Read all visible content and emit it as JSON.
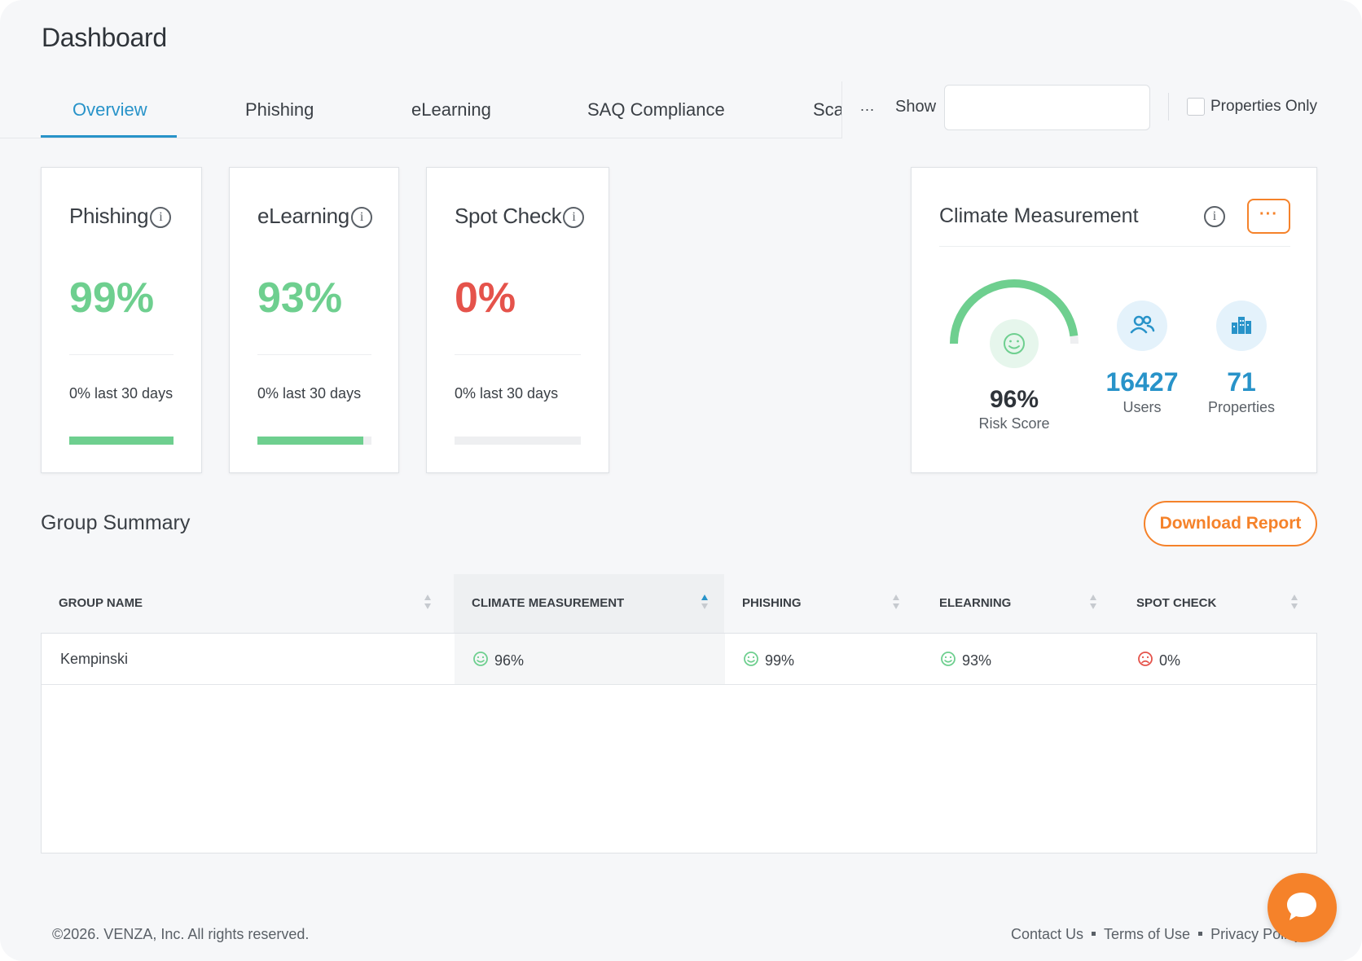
{
  "page": {
    "title": "Dashboard"
  },
  "tabs": [
    {
      "label": "Overview",
      "active": true
    },
    {
      "label": "Phishing"
    },
    {
      "label": "eLearning"
    },
    {
      "label": "SAQ Compliance"
    },
    {
      "label": "Scan"
    }
  ],
  "filters": {
    "more_label": "...",
    "show_label": "Show",
    "show_value": "",
    "properties_only_label": "Properties Only",
    "properties_only_checked": false
  },
  "metrics": [
    {
      "title": "Phishing",
      "value": "99%",
      "sub": "0% last 30 days",
      "progress": 1.0,
      "color": "#6ecf8f"
    },
    {
      "title": "eLearning",
      "value": "93%",
      "sub": "0% last 30 days",
      "progress": 0.93,
      "color": "#6ecf8f"
    },
    {
      "title": "Spot Check",
      "value": "0%",
      "sub": "0% last 30 days",
      "progress": 0.0,
      "color": "#e5534b"
    }
  ],
  "climate": {
    "title": "Climate Measurement",
    "more_label": "···",
    "risk_score": "96%",
    "risk_label": "Risk Score",
    "gauge_fraction": 0.96,
    "users": "16427",
    "users_label": "Users",
    "properties": "71",
    "properties_label": "Properties"
  },
  "group_summary": {
    "title": "Group Summary",
    "download_label": "Download Report",
    "columns": [
      "GROUP NAME",
      "CLIMATE MEASUREMENT",
      "PHISHING",
      "ELEARNING",
      "SPOT CHECK"
    ],
    "sorted_column": "CLIMATE MEASUREMENT",
    "rows": [
      {
        "group": "Kempinski",
        "climate": "96%",
        "phishing": "99%",
        "elearning": "93%",
        "spot_check": "0%"
      }
    ]
  },
  "footer": {
    "copyright": "©2026. VENZA, Inc. All rights reserved.",
    "links": [
      "Contact Us",
      "Terms of Use",
      "Privacy Policy"
    ]
  },
  "colors": {
    "accent": "#2893c9",
    "orange": "#f5822a",
    "good": "#6ecf8f",
    "bad": "#e5534b"
  }
}
